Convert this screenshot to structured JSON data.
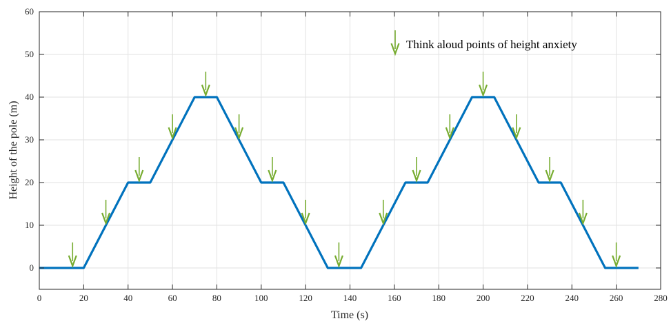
{
  "chart_data": {
    "type": "line",
    "title": "",
    "xlabel": "Time (s)",
    "ylabel": "Height of the pole (m)",
    "xlim": [
      0,
      280
    ],
    "ylim": [
      -5,
      60
    ],
    "xticks": [
      0,
      20,
      40,
      60,
      80,
      100,
      120,
      140,
      160,
      180,
      200,
      220,
      240,
      260,
      280
    ],
    "yticks": [
      0,
      10,
      20,
      30,
      40,
      50,
      60
    ],
    "grid": true,
    "legend_position": "top-right",
    "series": [
      {
        "type": "line",
        "color": "#0072bd",
        "x": [
          0,
          20,
          40,
          50,
          70,
          80,
          100,
          110,
          130,
          145,
          165,
          175,
          195,
          205,
          225,
          235,
          255,
          270
        ],
        "y": [
          0,
          0,
          20,
          20,
          40,
          40,
          20,
          20,
          0,
          0,
          20,
          20,
          40,
          40,
          20,
          20,
          0,
          0
        ]
      },
      {
        "name": "Think aloud points of height anxiety",
        "type": "marker",
        "marker": "down-arrow",
        "color": "#77ac30",
        "x": [
          15,
          30,
          45,
          60,
          75,
          90,
          105,
          120,
          135,
          155,
          170,
          185,
          200,
          215,
          230,
          245,
          260
        ],
        "y": [
          0,
          10,
          20,
          30,
          40,
          30,
          20,
          10,
          0,
          10,
          20,
          30,
          40,
          30,
          20,
          10,
          0
        ]
      }
    ]
  }
}
